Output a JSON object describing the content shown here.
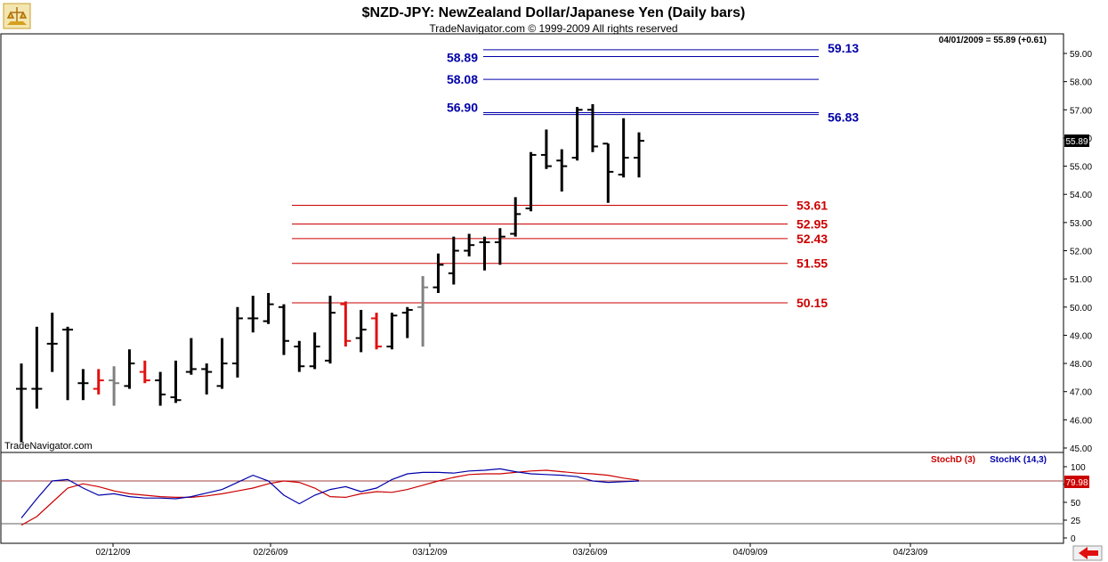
{
  "header": {
    "title": "$NZD-JPY:  NewZealand Dollar/Japanese Yen  (Daily bars)",
    "copyright": "TradeNavigator.com © 1999-2009 All rights reserved",
    "quote": "04/01/2009 = 55.89 (+0.61)",
    "watermark": "TradeNavigator.com"
  },
  "colors": {
    "background": "#ffffff",
    "bar": "#000000",
    "up_red": "#e01010",
    "gray": "#808080",
    "blue_level": "#0000aa",
    "red_level": "#cc0000",
    "stochD": "#cc0000",
    "stochK": "#0000aa"
  },
  "chart_data": [
    {
      "type": "ohlc",
      "title": "$NZD-JPY:  NewZealand Dollar/Japanese Yen  (Daily bars)",
      "ylim": [
        44.6,
        59.5
      ],
      "y_ticks": [
        "45.00",
        "46.00",
        "47.00",
        "48.00",
        "49.00",
        "50.00",
        "51.00",
        "52.00",
        "53.00",
        "54.00",
        "55.00",
        "56.00",
        "57.00",
        "58.00",
        "59.00"
      ],
      "x_ticks": [
        "02/12/09",
        "02/26/09",
        "03/12/09",
        "03/26/09",
        "04/09/09",
        "04/23/09"
      ],
      "last_price": "55.89",
      "bars": [
        {
          "o": 47.1,
          "h": 48.0,
          "l": 45.2,
          "c": 47.1,
          "color": "black"
        },
        {
          "o": 47.1,
          "h": 49.3,
          "l": 46.4,
          "c": 47.1,
          "color": "black"
        },
        {
          "o": 48.7,
          "h": 49.8,
          "l": 47.7,
          "c": 48.7,
          "color": "black"
        },
        {
          "o": 49.2,
          "h": 49.3,
          "l": 46.7,
          "c": 49.2,
          "color": "black"
        },
        {
          "o": 47.3,
          "h": 47.8,
          "l": 46.7,
          "c": 47.3,
          "color": "black"
        },
        {
          "o": 47.1,
          "h": 47.8,
          "l": 46.9,
          "c": 47.4,
          "color": "red"
        },
        {
          "o": 47.4,
          "h": 47.9,
          "l": 46.5,
          "c": 47.3,
          "color": "gray"
        },
        {
          "o": 47.2,
          "h": 48.5,
          "l": 47.1,
          "c": 48.0,
          "color": "black"
        },
        {
          "o": 47.7,
          "h": 48.1,
          "l": 47.3,
          "c": 47.4,
          "color": "red"
        },
        {
          "o": 47.4,
          "h": 47.7,
          "l": 46.5,
          "c": 46.9,
          "color": "black"
        },
        {
          "o": 46.8,
          "h": 48.1,
          "l": 46.6,
          "c": 46.7,
          "color": "black"
        },
        {
          "o": 47.7,
          "h": 48.9,
          "l": 47.6,
          "c": 47.8,
          "color": "black"
        },
        {
          "o": 47.8,
          "h": 48.0,
          "l": 46.9,
          "c": 47.7,
          "color": "black"
        },
        {
          "o": 47.2,
          "h": 48.9,
          "l": 47.1,
          "c": 48.0,
          "color": "black"
        },
        {
          "o": 48.0,
          "h": 50.0,
          "l": 47.5,
          "c": 49.6,
          "color": "black"
        },
        {
          "o": 49.6,
          "h": 50.4,
          "l": 49.1,
          "c": 49.6,
          "color": "black"
        },
        {
          "o": 49.5,
          "h": 50.5,
          "l": 49.4,
          "c": 50.1,
          "color": "black"
        },
        {
          "o": 50.0,
          "h": 50.1,
          "l": 48.3,
          "c": 48.8,
          "color": "black"
        },
        {
          "o": 48.6,
          "h": 48.8,
          "l": 47.7,
          "c": 47.9,
          "color": "black"
        },
        {
          "o": 47.9,
          "h": 49.1,
          "l": 47.8,
          "c": 48.6,
          "color": "black"
        },
        {
          "o": 48.1,
          "h": 50.4,
          "l": 48.0,
          "c": 49.8,
          "color": "black"
        },
        {
          "o": 50.1,
          "h": 50.2,
          "l": 48.6,
          "c": 48.8,
          "color": "red"
        },
        {
          "o": 48.9,
          "h": 49.9,
          "l": 48.4,
          "c": 49.2,
          "color": "black"
        },
        {
          "o": 49.6,
          "h": 49.8,
          "l": 48.5,
          "c": 48.6,
          "color": "red"
        },
        {
          "o": 48.6,
          "h": 49.8,
          "l": 48.5,
          "c": 49.7,
          "color": "black"
        },
        {
          "o": 49.8,
          "h": 50.0,
          "l": 48.9,
          "c": 49.9,
          "color": "black"
        },
        {
          "o": 50.0,
          "h": 51.1,
          "l": 48.6,
          "c": 50.7,
          "color": "gray"
        },
        {
          "o": 50.7,
          "h": 51.9,
          "l": 50.5,
          "c": 51.5,
          "color": "black"
        },
        {
          "o": 51.2,
          "h": 52.5,
          "l": 50.8,
          "c": 52.0,
          "color": "black"
        },
        {
          "o": 52.0,
          "h": 52.6,
          "l": 51.8,
          "c": 52.2,
          "color": "black"
        },
        {
          "o": 52.3,
          "h": 52.5,
          "l": 51.3,
          "c": 52.3,
          "color": "black"
        },
        {
          "o": 52.3,
          "h": 52.8,
          "l": 51.5,
          "c": 52.5,
          "color": "black"
        },
        {
          "o": 52.6,
          "h": 53.9,
          "l": 52.5,
          "c": 53.3,
          "color": "black"
        },
        {
          "o": 53.5,
          "h": 55.5,
          "l": 53.4,
          "c": 55.4,
          "color": "black"
        },
        {
          "o": 55.4,
          "h": 56.3,
          "l": 54.9,
          "c": 55.0,
          "color": "black"
        },
        {
          "o": 55.2,
          "h": 55.6,
          "l": 54.1,
          "c": 55.0,
          "color": "black"
        },
        {
          "o": 55.3,
          "h": 57.1,
          "l": 55.2,
          "c": 57.0,
          "color": "black"
        },
        {
          "o": 57.0,
          "h": 57.2,
          "l": 55.5,
          "c": 55.7,
          "color": "black"
        },
        {
          "o": 55.8,
          "h": 55.8,
          "l": 53.7,
          "c": 54.8,
          "color": "black"
        },
        {
          "o": 54.7,
          "h": 56.7,
          "l": 54.6,
          "c": 55.3,
          "color": "black"
        },
        {
          "o": 55.3,
          "h": 56.2,
          "l": 54.6,
          "c": 55.9,
          "color": "black"
        }
      ],
      "levels": [
        {
          "label": "59.13",
          "value": 59.13,
          "color": "blue",
          "side": "right"
        },
        {
          "label": "58.89",
          "value": 58.89,
          "color": "blue",
          "side": "left"
        },
        {
          "label": "58.08",
          "value": 58.08,
          "color": "blue",
          "side": "left"
        },
        {
          "label": "56.90",
          "value": 56.9,
          "color": "blue",
          "side": "left"
        },
        {
          "label": "56.83",
          "value": 56.83,
          "color": "blue",
          "side": "right"
        },
        {
          "label": "53.61",
          "value": 53.61,
          "color": "red",
          "side": "right"
        },
        {
          "label": "52.95",
          "value": 52.95,
          "color": "red",
          "side": "right"
        },
        {
          "label": "52.43",
          "value": 52.43,
          "color": "red",
          "side": "right"
        },
        {
          "label": "51.55",
          "value": 51.55,
          "color": "red",
          "side": "right"
        },
        {
          "label": "50.15",
          "value": 50.15,
          "color": "red",
          "side": "right"
        }
      ]
    },
    {
      "type": "line",
      "legend": [
        "StochD (3)",
        "StochK (14,3)"
      ],
      "ylim": [
        -5,
        110
      ],
      "y_ticks": [
        "0",
        "25",
        "50",
        "75",
        "100"
      ],
      "last_value": "79.98",
      "reference_lines": [
        80,
        20
      ],
      "series": [
        {
          "name": "StochD (3)",
          "color": "red",
          "values": [
            18,
            30,
            50,
            70,
            76,
            72,
            66,
            62,
            60,
            58,
            57,
            57,
            59,
            62,
            66,
            70,
            76,
            80,
            78,
            70,
            58,
            57,
            62,
            65,
            64,
            68,
            74,
            80,
            85,
            89,
            90,
            90,
            92,
            94,
            95,
            93,
            91,
            90,
            88,
            84,
            81
          ]
        },
        {
          "name": "StochK (14,3)",
          "color": "blue",
          "values": [
            28,
            55,
            80,
            82,
            70,
            60,
            62,
            58,
            56,
            56,
            55,
            58,
            63,
            68,
            78,
            88,
            80,
            60,
            48,
            60,
            68,
            72,
            65,
            70,
            82,
            90,
            92,
            92,
            91,
            94,
            95,
            97,
            93,
            90,
            89,
            88,
            86,
            80,
            78,
            79,
            80
          ]
        }
      ]
    }
  ]
}
